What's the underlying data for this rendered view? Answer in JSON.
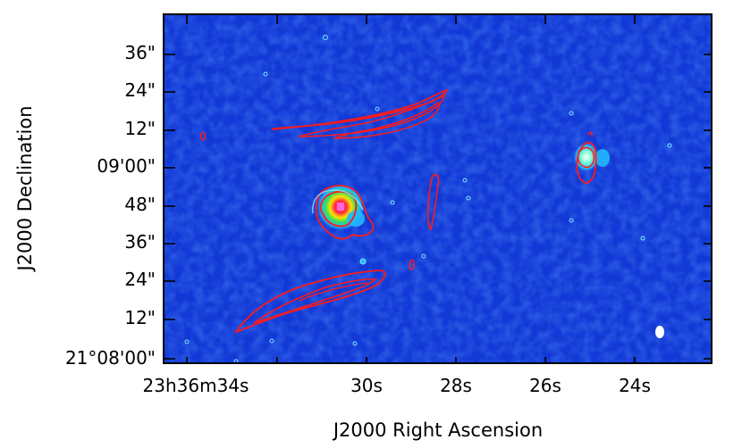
{
  "figure": {
    "x_axis_title": "J2000 Right Ascension",
    "y_axis_title": "J2000 Declination",
    "colors": {
      "background": "#1238d6",
      "noise_light": "#2d5cf0",
      "noise_dark": "#0a22a8",
      "contour_low": "#7fe8ff",
      "contour_radio": "#ff1a1a",
      "peak": "#ff3cc8"
    },
    "y_ticks": [
      {
        "label": "36\""
      },
      {
        "label": "24\""
      },
      {
        "label": "12\""
      },
      {
        "label": "09'00\""
      },
      {
        "label": "48\""
      },
      {
        "label": "36\""
      },
      {
        "label": "24\""
      },
      {
        "label": "12\""
      },
      {
        "label": "21°08'00\""
      }
    ],
    "x_ticks": [
      {
        "label": "23h36m34s"
      },
      {
        "label": "30s"
      },
      {
        "label": "28s"
      },
      {
        "label": "26s"
      },
      {
        "label": "24s"
      }
    ]
  }
}
